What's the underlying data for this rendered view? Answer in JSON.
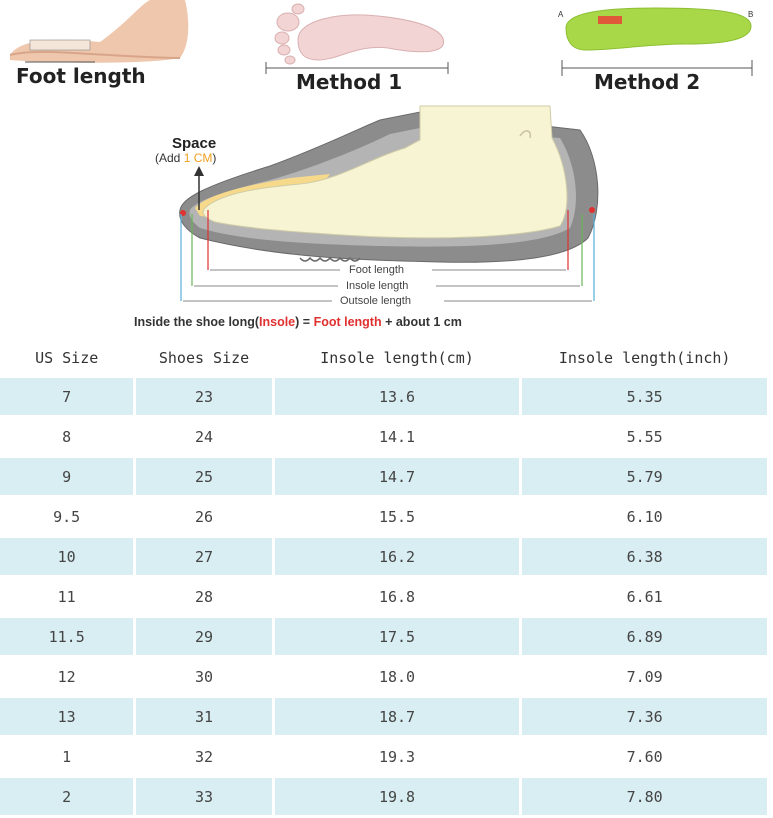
{
  "header": {
    "foot_length_label": "Foot length",
    "method1_label": "Method 1",
    "method2_label": "Method 2",
    "method2_point_a": "A",
    "method2_point_b": "B"
  },
  "diagram": {
    "space_title": "Space",
    "space_add_prefix": "(Add ",
    "space_add_value": "1 CM",
    "space_add_suffix": ")",
    "foot_length": "Foot length",
    "insole_length": "Insole length",
    "outsole_length": "Outsole length",
    "formula_prefix": "Inside the shoe long(",
    "formula_insole": "Insole",
    "formula_equals": ") = ",
    "formula_foot_length": "Foot length",
    "formula_suffix": " + about 1 cm"
  },
  "colors": {
    "row_highlight": "#d8eef3",
    "accent_red": "#e03030",
    "accent_orange": "#f0a020",
    "insole_green": "#a8d848"
  },
  "table": {
    "headers": [
      "US Size",
      "Shoes Size",
      "Insole length(cm)",
      "Insole length(inch)"
    ],
    "rows": [
      [
        "7",
        "23",
        "13.6",
        "5.35"
      ],
      [
        "8",
        "24",
        "14.1",
        "5.55"
      ],
      [
        "9",
        "25",
        "14.7",
        "5.79"
      ],
      [
        "9.5",
        "26",
        "15.5",
        "6.10"
      ],
      [
        "10",
        "27",
        "16.2",
        "6.38"
      ],
      [
        "11",
        "28",
        "16.8",
        "6.61"
      ],
      [
        "11.5",
        "29",
        "17.5",
        "6.89"
      ],
      [
        "12",
        "30",
        "18.0",
        "7.09"
      ],
      [
        "13",
        "31",
        "18.7",
        "7.36"
      ],
      [
        "1",
        "32",
        "19.3",
        "7.60"
      ],
      [
        "2",
        "33",
        "19.8",
        "7.80"
      ]
    ]
  }
}
